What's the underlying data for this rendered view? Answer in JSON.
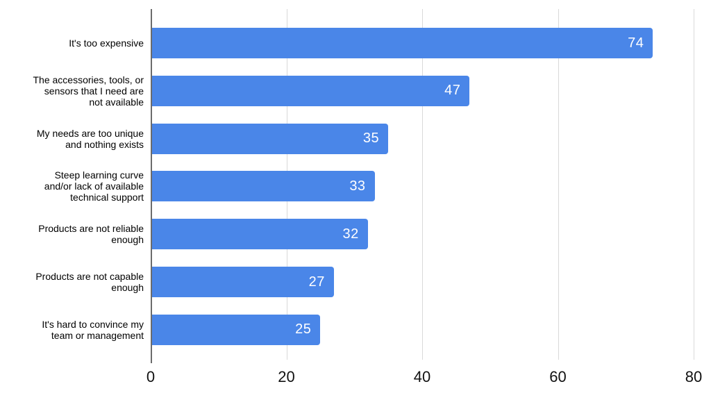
{
  "chart_data": {
    "type": "bar",
    "orientation": "horizontal",
    "title": "",
    "xlabel": "",
    "ylabel": "",
    "categories": [
      "It's too expensive",
      "The accessories, tools, or\nsensors that I need are\nnot available",
      "My needs are too unique\nand nothing exists",
      "Steep learning curve\nand/or lack of available\ntechnical support",
      "Products are not reliable\nenough",
      "Products are not capable\nenough",
      "It's hard to convince my\nteam or management"
    ],
    "values": [
      74,
      47,
      35,
      33,
      32,
      27,
      25
    ],
    "x_ticks": [
      0,
      20,
      40,
      60,
      80
    ],
    "xlim": [
      0,
      80
    ],
    "grid": true,
    "legend": "none",
    "bar_color": "#4a86e8",
    "value_label_color": "#ffffff",
    "gridline_color": "#d9d9d9",
    "axis_line_color": "#6b6b6b",
    "tick_label_color": "#111111",
    "category_label_color": "#000000",
    "background_color": "#ffffff"
  }
}
